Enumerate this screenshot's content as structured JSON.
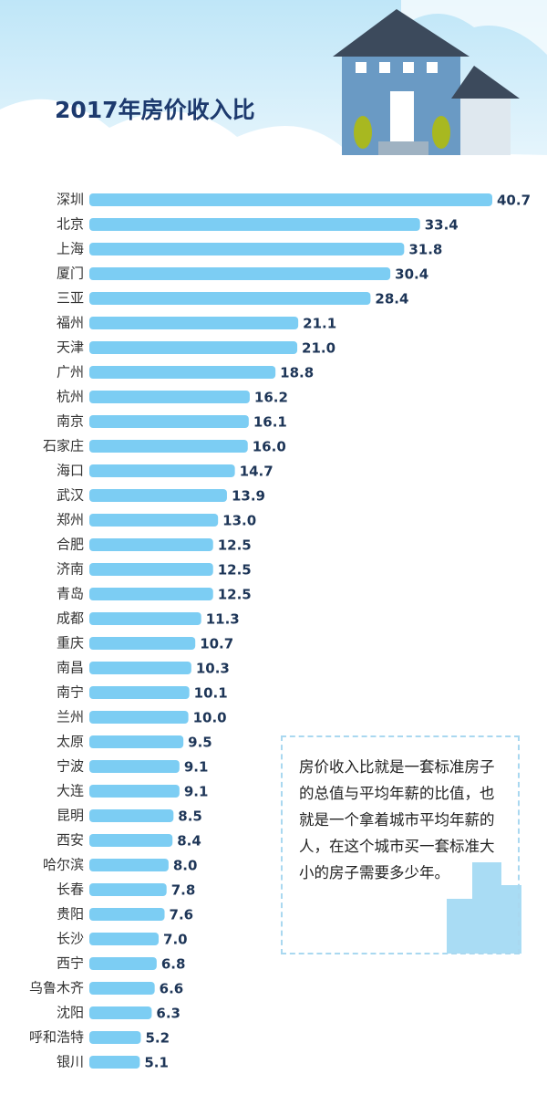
{
  "chart_data": {
    "type": "bar",
    "orientation": "horizontal",
    "title": "2017年房价收入比",
    "categories": [
      "深圳",
      "北京",
      "上海",
      "厦门",
      "三亚",
      "福州",
      "天津",
      "广州",
      "杭州",
      "南京",
      "石家庄",
      "海口",
      "武汉",
      "郑州",
      "合肥",
      "济南",
      "青岛",
      "成都",
      "重庆",
      "南昌",
      "南宁",
      "兰州",
      "太原",
      "宁波",
      "大连",
      "昆明",
      "西安",
      "哈尔滨",
      "长春",
      "贵阳",
      "长沙",
      "西宁",
      "乌鲁木齐",
      "沈阳",
      "呼和浩特",
      "银川"
    ],
    "values": [
      40.7,
      33.4,
      31.8,
      30.4,
      28.4,
      21.1,
      21.0,
      18.8,
      16.2,
      16.1,
      16.0,
      14.7,
      13.9,
      13.0,
      12.5,
      12.5,
      12.5,
      11.3,
      10.7,
      10.3,
      10.1,
      10.0,
      9.5,
      9.1,
      9.1,
      8.5,
      8.4,
      8.0,
      7.8,
      7.6,
      7.0,
      6.8,
      6.6,
      6.3,
      5.2,
      5.1
    ],
    "value_labels": [
      "40.7",
      "33.4",
      "31.8",
      "30.4",
      "28.4",
      "21.1",
      "21.0",
      "18.8",
      "16.2",
      "16.1",
      "16.0",
      "14.7",
      "13.9",
      "13.0",
      "12.5",
      "12.5",
      "12.5",
      "11.3",
      "10.7",
      "10.3",
      "10.1",
      "10.0",
      "9.5",
      "9.1",
      "9.1",
      "8.5",
      "8.4",
      "8.0",
      "7.8",
      "7.6",
      "7.0",
      "6.8",
      "6.6",
      "6.3",
      "5.2",
      "5.1"
    ],
    "color": "#7ccdf3",
    "note": "房价收入比就是一套标准房子的总值与平均年薪的比值，也就是一个拿着城市平均年薪的人，在这个城市买一套标准大小的房子需要多少年。"
  }
}
